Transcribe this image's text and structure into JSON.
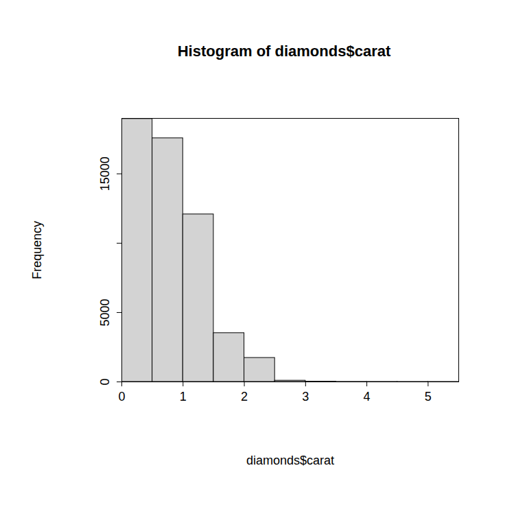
{
  "chart_data": {
    "type": "histogram",
    "title": "Histogram of diamonds$carat",
    "x_label": "diamonds$carat",
    "y_label": "Frequency",
    "bins": [
      0,
      0.5,
      1,
      1.5,
      2,
      2.5,
      3,
      3.5,
      4,
      4.5,
      5,
      5.5
    ],
    "values": [
      18960,
      17570,
      12080,
      3520,
      1730,
      90,
      20,
      5,
      3,
      1,
      1
    ],
    "color": "#d3d3d3",
    "xlim": [
      0,
      5.5
    ],
    "xticks": [
      0,
      1,
      2,
      3,
      4,
      5
    ],
    "ylim": [
      0,
      19000
    ],
    "yticks": [
      0,
      5000,
      {
        "value": 10000,
        "label": null
      },
      15000
    ]
  }
}
